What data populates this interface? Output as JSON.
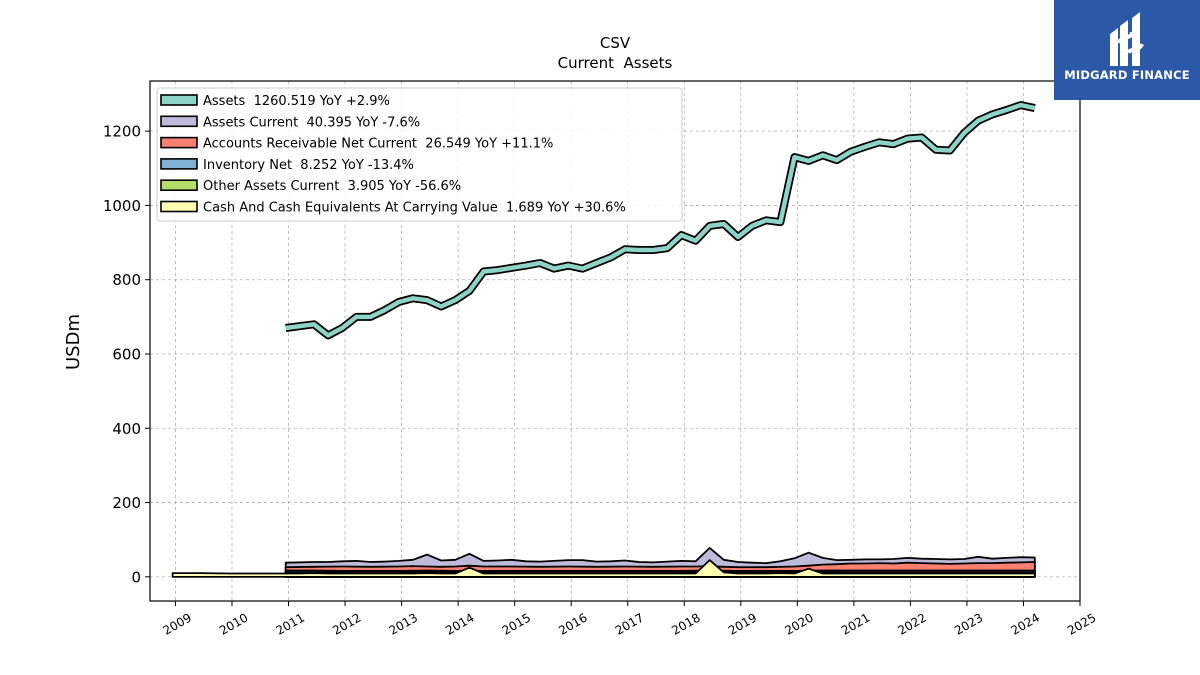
{
  "logo": {
    "text": "MIDGARD FINANCE"
  },
  "chart_data": {
    "type": "area",
    "title": "CSV",
    "subtitle": "Current  Assets",
    "xlabel": "",
    "ylabel": "USDm",
    "xlim": [
      2008.55,
      2025.0
    ],
    "ylim": [
      -65,
      1335
    ],
    "x_ticks": [
      "2009",
      "2010",
      "2011",
      "2012",
      "2013",
      "2014",
      "2015",
      "2016",
      "2017",
      "2018",
      "2019",
      "2020",
      "2021",
      "2022",
      "2023",
      "2024",
      "2025"
    ],
    "y_ticks": [
      0,
      200,
      400,
      600,
      800,
      1000,
      1200
    ],
    "grid": true,
    "legend_position": "upper-left",
    "colors": {
      "assets": "#8dd3c7",
      "assets_current": "#bebada",
      "accounts_receivable": "#fb8072",
      "inventory": "#80b1d3",
      "other_assets": "#b3de69",
      "cash": "#ffffb3",
      "outline": "#000000",
      "grid": "#b0b0b0"
    },
    "series": [
      {
        "name": "Assets  1260.519 YoY +2.9%",
        "key": "assets",
        "type": "line",
        "points": [
          [
            2010.95,
            670
          ],
          [
            2011.2,
            675
          ],
          [
            2011.45,
            680
          ],
          [
            2011.7,
            650
          ],
          [
            2011.95,
            670
          ],
          [
            2012.2,
            700
          ],
          [
            2012.45,
            700
          ],
          [
            2012.7,
            718
          ],
          [
            2012.95,
            740
          ],
          [
            2013.2,
            750
          ],
          [
            2013.45,
            745
          ],
          [
            2013.7,
            728
          ],
          [
            2013.95,
            745
          ],
          [
            2014.2,
            770
          ],
          [
            2014.45,
            822
          ],
          [
            2014.7,
            826
          ],
          [
            2014.95,
            832
          ],
          [
            2015.2,
            838
          ],
          [
            2015.45,
            845
          ],
          [
            2015.7,
            830
          ],
          [
            2015.95,
            838
          ],
          [
            2016.2,
            830
          ],
          [
            2016.45,
            845
          ],
          [
            2016.7,
            860
          ],
          [
            2016.95,
            882
          ],
          [
            2017.2,
            880
          ],
          [
            2017.45,
            880
          ],
          [
            2017.7,
            885
          ],
          [
            2017.95,
            920
          ],
          [
            2018.2,
            905
          ],
          [
            2018.45,
            945
          ],
          [
            2018.7,
            950
          ],
          [
            2018.95,
            915
          ],
          [
            2019.2,
            945
          ],
          [
            2019.45,
            960
          ],
          [
            2019.7,
            955
          ],
          [
            2019.95,
            1130
          ],
          [
            2020.2,
            1120
          ],
          [
            2020.45,
            1135
          ],
          [
            2020.7,
            1122
          ],
          [
            2020.95,
            1145
          ],
          [
            2021.2,
            1158
          ],
          [
            2021.45,
            1170
          ],
          [
            2021.7,
            1165
          ],
          [
            2021.95,
            1180
          ],
          [
            2022.2,
            1183
          ],
          [
            2022.45,
            1150
          ],
          [
            2022.7,
            1148
          ],
          [
            2022.95,
            1195
          ],
          [
            2023.2,
            1228
          ],
          [
            2023.45,
            1245
          ],
          [
            2023.7,
            1257
          ],
          [
            2023.95,
            1270
          ],
          [
            2024.2,
            1262
          ]
        ]
      },
      {
        "name": "Assets Current  40.395 YoY -7.6%",
        "key": "assets_current",
        "type": "area",
        "points": [
          [
            2010.95,
            38
          ],
          [
            2011.45,
            40
          ],
          [
            2011.7,
            40
          ],
          [
            2011.95,
            42
          ],
          [
            2012.2,
            43
          ],
          [
            2012.45,
            40
          ],
          [
            2012.7,
            41
          ],
          [
            2012.95,
            43
          ],
          [
            2013.2,
            46
          ],
          [
            2013.45,
            60
          ],
          [
            2013.7,
            44
          ],
          [
            2013.95,
            46
          ],
          [
            2014.2,
            62
          ],
          [
            2014.45,
            43
          ],
          [
            2014.7,
            44
          ],
          [
            2014.95,
            46
          ],
          [
            2015.2,
            42
          ],
          [
            2015.45,
            41
          ],
          [
            2015.7,
            43
          ],
          [
            2015.95,
            45
          ],
          [
            2016.2,
            45
          ],
          [
            2016.45,
            41
          ],
          [
            2016.7,
            42
          ],
          [
            2016.95,
            44
          ],
          [
            2017.2,
            40
          ],
          [
            2017.45,
            39
          ],
          [
            2017.7,
            41
          ],
          [
            2017.95,
            43
          ],
          [
            2018.2,
            42
          ],
          [
            2018.45,
            78
          ],
          [
            2018.7,
            46
          ],
          [
            2018.95,
            40
          ],
          [
            2019.2,
            38
          ],
          [
            2019.45,
            37
          ],
          [
            2019.7,
            42
          ],
          [
            2019.95,
            50
          ],
          [
            2020.2,
            65
          ],
          [
            2020.45,
            51
          ],
          [
            2020.7,
            45
          ],
          [
            2020.95,
            46
          ],
          [
            2021.2,
            47
          ],
          [
            2021.45,
            47
          ],
          [
            2021.7,
            48
          ],
          [
            2021.95,
            51
          ],
          [
            2022.2,
            49
          ],
          [
            2022.45,
            48
          ],
          [
            2022.7,
            47
          ],
          [
            2022.95,
            48
          ],
          [
            2023.2,
            54
          ],
          [
            2023.45,
            49
          ],
          [
            2023.7,
            51
          ],
          [
            2023.95,
            53
          ],
          [
            2024.2,
            52
          ]
        ]
      },
      {
        "name": "Accounts Receivable Net Current  26.549 YoY +11.1%",
        "key": "accounts_receivable",
        "type": "area",
        "points": [
          [
            2010.95,
            26
          ],
          [
            2011.45,
            27
          ],
          [
            2011.95,
            28
          ],
          [
            2012.45,
            27
          ],
          [
            2012.95,
            28
          ],
          [
            2013.2,
            29
          ],
          [
            2013.45,
            28
          ],
          [
            2013.7,
            27
          ],
          [
            2013.95,
            28
          ],
          [
            2014.2,
            30
          ],
          [
            2014.45,
            28
          ],
          [
            2014.95,
            28
          ],
          [
            2015.45,
            27
          ],
          [
            2015.95,
            28
          ],
          [
            2016.45,
            27
          ],
          [
            2016.95,
            28
          ],
          [
            2017.45,
            27
          ],
          [
            2017.95,
            28
          ],
          [
            2018.2,
            28
          ],
          [
            2018.45,
            29
          ],
          [
            2018.7,
            27
          ],
          [
            2018.95,
            26
          ],
          [
            2019.45,
            26
          ],
          [
            2019.95,
            28
          ],
          [
            2020.2,
            30
          ],
          [
            2020.45,
            33
          ],
          [
            2020.7,
            34
          ],
          [
            2020.95,
            36
          ],
          [
            2021.2,
            36
          ],
          [
            2021.45,
            37
          ],
          [
            2021.7,
            36
          ],
          [
            2021.95,
            38
          ],
          [
            2022.2,
            37
          ],
          [
            2022.45,
            36
          ],
          [
            2022.7,
            35
          ],
          [
            2022.95,
            36
          ],
          [
            2023.2,
            37
          ],
          [
            2023.45,
            37
          ],
          [
            2023.7,
            38
          ],
          [
            2023.95,
            39
          ],
          [
            2024.2,
            40
          ]
        ]
      },
      {
        "name": "Inventory Net  8.252 YoY -13.4%",
        "key": "inventory",
        "type": "area",
        "points": [
          [
            2010.95,
            17
          ],
          [
            2011.45,
            17
          ],
          [
            2011.95,
            16
          ],
          [
            2012.45,
            16
          ],
          [
            2012.95,
            16
          ],
          [
            2013.45,
            17
          ],
          [
            2013.95,
            16
          ],
          [
            2014.45,
            16
          ],
          [
            2014.95,
            16
          ],
          [
            2015.45,
            16
          ],
          [
            2015.95,
            16
          ],
          [
            2016.45,
            16
          ],
          [
            2016.95,
            16
          ],
          [
            2017.45,
            16
          ],
          [
            2017.95,
            16
          ],
          [
            2018.45,
            17
          ],
          [
            2018.95,
            16
          ],
          [
            2019.45,
            16
          ],
          [
            2019.95,
            16
          ],
          [
            2020.45,
            17
          ],
          [
            2020.95,
            17
          ],
          [
            2021.45,
            17
          ],
          [
            2021.95,
            17
          ],
          [
            2022.45,
            17
          ],
          [
            2022.95,
            17
          ],
          [
            2023.45,
            17
          ],
          [
            2023.95,
            17
          ],
          [
            2024.2,
            17
          ]
        ]
      },
      {
        "name": "Other Assets Current  3.905 YoY -56.6%",
        "key": "other_assets",
        "type": "area",
        "points": [
          [
            2010.95,
            12
          ],
          [
            2011.45,
            12
          ],
          [
            2011.95,
            12
          ],
          [
            2012.45,
            12
          ],
          [
            2012.95,
            12
          ],
          [
            2013.45,
            12
          ],
          [
            2013.95,
            12
          ],
          [
            2014.2,
            12
          ],
          [
            2014.45,
            12
          ],
          [
            2014.95,
            12
          ],
          [
            2015.45,
            12
          ],
          [
            2015.95,
            12
          ],
          [
            2016.45,
            12
          ],
          [
            2016.95,
            12
          ],
          [
            2017.45,
            12
          ],
          [
            2017.95,
            12
          ],
          [
            2018.2,
            12
          ],
          [
            2018.45,
            14
          ],
          [
            2018.7,
            12
          ],
          [
            2018.95,
            12
          ],
          [
            2019.45,
            12
          ],
          [
            2019.95,
            12
          ],
          [
            2020.2,
            13
          ],
          [
            2020.45,
            13
          ],
          [
            2020.95,
            12
          ],
          [
            2021.45,
            12
          ],
          [
            2021.95,
            12
          ],
          [
            2022.45,
            12
          ],
          [
            2022.95,
            12
          ],
          [
            2023.45,
            12
          ],
          [
            2023.95,
            12
          ],
          [
            2024.2,
            12
          ]
        ]
      },
      {
        "name": "Cash And Cash Equivalents At Carrying Value  1.689 YoY +30.6%",
        "key": "cash",
        "type": "area",
        "points": [
          [
            2008.95,
            10
          ],
          [
            2009.45,
            10
          ],
          [
            2009.95,
            9
          ],
          [
            2010.45,
            9
          ],
          [
            2010.95,
            9
          ],
          [
            2011.2,
            9
          ],
          [
            2011.45,
            10
          ],
          [
            2011.7,
            9
          ],
          [
            2011.95,
            9
          ],
          [
            2012.45,
            9
          ],
          [
            2012.95,
            9
          ],
          [
            2013.2,
            9
          ],
          [
            2013.45,
            10
          ],
          [
            2013.7,
            9
          ],
          [
            2013.95,
            9
          ],
          [
            2014.2,
            25
          ],
          [
            2014.45,
            9
          ],
          [
            2014.7,
            9
          ],
          [
            2014.95,
            9
          ],
          [
            2015.45,
            9
          ],
          [
            2015.95,
            9
          ],
          [
            2016.45,
            9
          ],
          [
            2016.95,
            9
          ],
          [
            2017.2,
            9
          ],
          [
            2017.45,
            9
          ],
          [
            2017.95,
            9
          ],
          [
            2018.2,
            9
          ],
          [
            2018.45,
            45
          ],
          [
            2018.7,
            12
          ],
          [
            2018.95,
            9
          ],
          [
            2019.45,
            9
          ],
          [
            2019.7,
            10
          ],
          [
            2019.95,
            9
          ],
          [
            2020.2,
            22
          ],
          [
            2020.45,
            9
          ],
          [
            2020.95,
            9
          ],
          [
            2021.45,
            9
          ],
          [
            2021.95,
            9
          ],
          [
            2022.45,
            9
          ],
          [
            2022.95,
            9
          ],
          [
            2023.45,
            9
          ],
          [
            2023.95,
            9
          ],
          [
            2024.2,
            9
          ]
        ]
      }
    ]
  }
}
